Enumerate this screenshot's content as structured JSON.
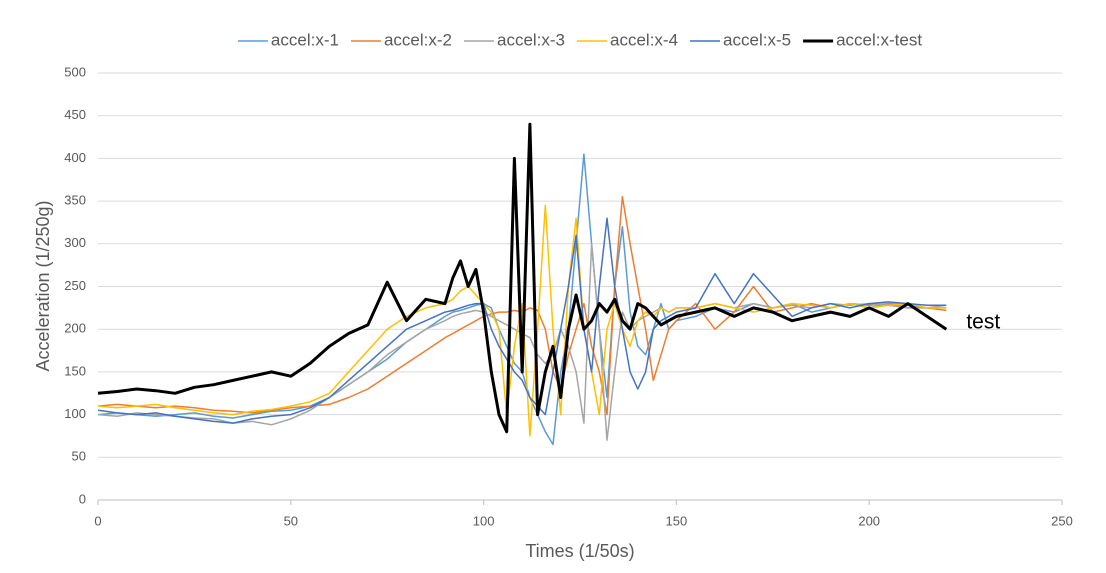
{
  "chart_data": {
    "type": "line",
    "x_label": "Times (1/50s)",
    "y_label": "Acceleration (1/250g)",
    "x": [
      0,
      5,
      10,
      15,
      20,
      25,
      30,
      35,
      40,
      45,
      50,
      55,
      60,
      65,
      70,
      75,
      80,
      85,
      90,
      92,
      94,
      96,
      98,
      100,
      102,
      104,
      106,
      108,
      110,
      112,
      114,
      116,
      118,
      120,
      122,
      124,
      126,
      128,
      130,
      132,
      134,
      136,
      138,
      140,
      142,
      144,
      146,
      148,
      150,
      155,
      160,
      165,
      170,
      175,
      180,
      185,
      190,
      195,
      200,
      205,
      210,
      215,
      220
    ],
    "series": [
      {
        "name": "accel:x-1",
        "color": "#5b9bd5",
        "width": 1.5,
        "values": [
          100,
          102,
          100,
          98,
          100,
          102,
          98,
          96,
          100,
          104,
          105,
          110,
          120,
          135,
          150,
          165,
          185,
          200,
          215,
          220,
          222,
          225,
          228,
          230,
          225,
          200,
          180,
          160,
          150,
          120,
          100,
          80,
          65,
          150,
          200,
          300,
          405,
          300,
          200,
          120,
          250,
          320,
          220,
          180,
          170,
          200,
          230,
          200,
          210,
          215,
          225,
          220,
          230,
          225,
          230,
          220,
          225,
          230,
          225,
          230,
          228,
          225,
          225
        ]
      },
      {
        "name": "accel:x-2",
        "color": "#ed7d31",
        "width": 1.5,
        "values": [
          110,
          112,
          110,
          108,
          110,
          108,
          105,
          104,
          102,
          105,
          108,
          110,
          112,
          120,
          130,
          145,
          160,
          175,
          190,
          195,
          200,
          205,
          210,
          215,
          218,
          220,
          220,
          222,
          220,
          225,
          222,
          200,
          150,
          130,
          170,
          200,
          230,
          180,
          150,
          100,
          250,
          355,
          300,
          250,
          200,
          140,
          170,
          200,
          210,
          230,
          200,
          220,
          250,
          220,
          225,
          230,
          225,
          230,
          228,
          230,
          225,
          225,
          222
        ]
      },
      {
        "name": "accel:x-3",
        "color": "#a5a5a5",
        "width": 1.5,
        "values": [
          100,
          98,
          102,
          100,
          98,
          96,
          95,
          90,
          92,
          88,
          95,
          105,
          120,
          135,
          150,
          170,
          185,
          200,
          210,
          215,
          218,
          220,
          222,
          220,
          215,
          210,
          205,
          200,
          195,
          190,
          170,
          160,
          170,
          200,
          180,
          150,
          90,
          300,
          200,
          70,
          150,
          220,
          200,
          210,
          215,
          220,
          225,
          220,
          225,
          225,
          230,
          225,
          230,
          225,
          228,
          225,
          230,
          228,
          230,
          228,
          225,
          225,
          228
        ]
      },
      {
        "name": "accel:x-4",
        "color": "#ffc000",
        "width": 1.5,
        "values": [
          110,
          108,
          110,
          112,
          108,
          105,
          102,
          100,
          104,
          106,
          110,
          115,
          125,
          150,
          175,
          200,
          215,
          225,
          230,
          235,
          245,
          250,
          240,
          230,
          220,
          200,
          100,
          180,
          230,
          75,
          200,
          345,
          200,
          100,
          250,
          330,
          200,
          150,
          100,
          200,
          230,
          200,
          180,
          210,
          220,
          215,
          225,
          220,
          225,
          225,
          230,
          225,
          220,
          225,
          230,
          228,
          225,
          230,
          225,
          228,
          230,
          225,
          225
        ]
      },
      {
        "name": "accel:x-5",
        "color": "#4472c4",
        "width": 1.5,
        "values": [
          105,
          102,
          100,
          102,
          98,
          95,
          92,
          90,
          95,
          98,
          100,
          108,
          120,
          140,
          160,
          180,
          200,
          210,
          220,
          222,
          225,
          228,
          230,
          230,
          200,
          180,
          165,
          150,
          140,
          120,
          110,
          100,
          150,
          200,
          250,
          310,
          200,
          150,
          250,
          330,
          250,
          200,
          150,
          130,
          150,
          200,
          210,
          215,
          220,
          225,
          265,
          230,
          265,
          240,
          215,
          225,
          230,
          225,
          230,
          232,
          230,
          228,
          228
        ]
      },
      {
        "name": "accel:x-test",
        "color": "#000000",
        "width": 3,
        "values": [
          125,
          127,
          130,
          128,
          125,
          132,
          135,
          140,
          145,
          150,
          145,
          160,
          180,
          195,
          205,
          255,
          210,
          235,
          230,
          260,
          280,
          250,
          270,
          220,
          150,
          100,
          80,
          400,
          150,
          440,
          100,
          150,
          180,
          120,
          200,
          240,
          200,
          210,
          230,
          220,
          235,
          210,
          200,
          230,
          225,
          215,
          205,
          210,
          215,
          220,
          225,
          215,
          225,
          220,
          210,
          215,
          220,
          215,
          225,
          215,
          230,
          215,
          200
        ]
      }
    ],
    "annotation": "test",
    "xlim": [
      0,
      250
    ],
    "xticks": [
      0,
      50,
      100,
      150,
      200,
      250
    ],
    "ylim": [
      0,
      500
    ],
    "yticks": [
      0,
      50,
      100,
      150,
      200,
      250,
      300,
      350,
      400,
      450,
      500
    ],
    "grid": true,
    "legend": "top"
  }
}
